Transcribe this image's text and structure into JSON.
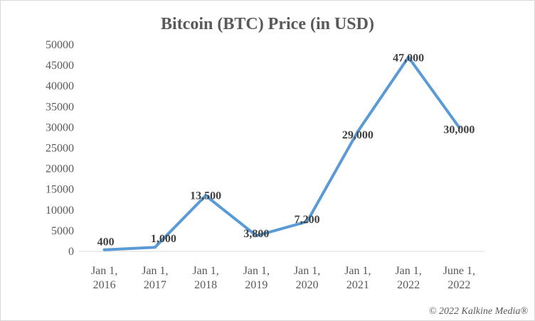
{
  "chart_data": {
    "type": "line",
    "title": "Bitcoin (BTC) Price (in USD)",
    "xlabel": "",
    "ylabel": "",
    "ylim": [
      0,
      50000
    ],
    "yticks": [
      "0",
      "5000",
      "10000",
      "15000",
      "20000",
      "25000",
      "30000",
      "35000",
      "40000",
      "45000",
      "50000"
    ],
    "categories": [
      [
        "Jan 1,",
        "2016"
      ],
      [
        "Jan 1,",
        "2017"
      ],
      [
        "Jan 1,",
        "2018"
      ],
      [
        "Jan 1,",
        "2019"
      ],
      [
        "Jan 1,",
        "2020"
      ],
      [
        "Jan 1,",
        "2021"
      ],
      [
        "Jan 1,",
        "2022"
      ],
      [
        "June 1,",
        "2022"
      ]
    ],
    "series": [
      {
        "values": [
          400,
          1000,
          13500,
          3800,
          7200,
          29000,
          47000,
          30000
        ],
        "data_labels": [
          "400",
          "1,000",
          "13,500",
          "3,800",
          "7,200",
          "29,000",
          "47,000",
          "30,000"
        ],
        "color": "#5b9bd5"
      }
    ],
    "grid": false,
    "legend": "none"
  },
  "footer": {
    "copyright": "© 2022 Kalkine Media®"
  },
  "colors": {
    "line": "#5b9bd5",
    "axis": "#d9d9d9",
    "text": "#595959",
    "label": "#404040"
  }
}
